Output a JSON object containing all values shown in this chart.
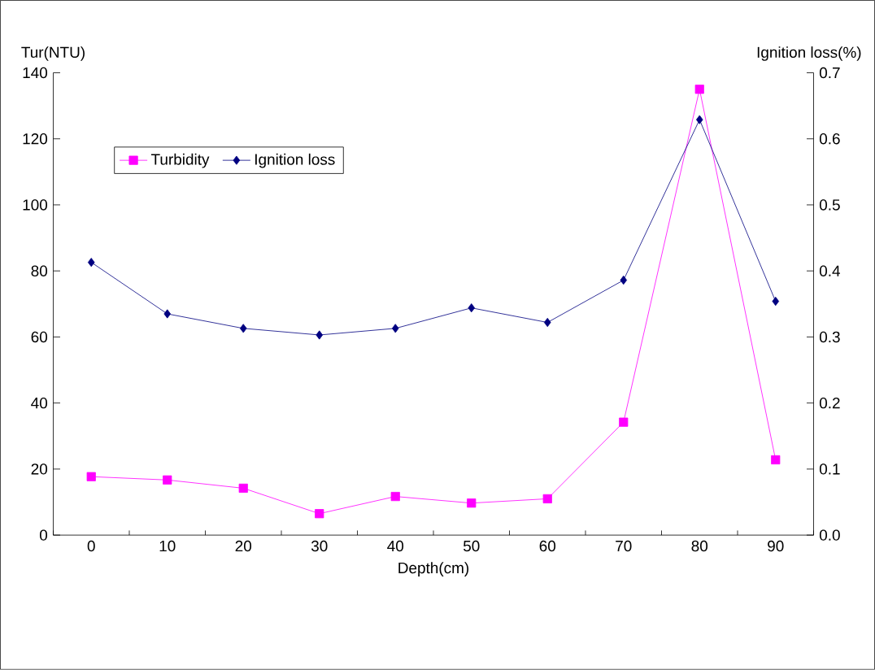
{
  "chart_data": {
    "type": "line",
    "xlabel": "Depth(cm)",
    "ylabel": "Tur(NTU)",
    "y2label": "Ignition loss(%)",
    "categories": [
      "0",
      "10",
      "20",
      "30",
      "40",
      "50",
      "60",
      "70",
      "80",
      "90"
    ],
    "series": [
      {
        "name": "Turbidity",
        "color": "#ff00ff",
        "marker": "square",
        "values": [
          17.7,
          16.7,
          14.2,
          6.5,
          11.7,
          9.7,
          11,
          34.2,
          135,
          22.8
        ]
      },
      {
        "name": "Ignition loss",
        "color": "#000080",
        "marker": "diamond",
        "axis": "y2",
        "values": [
          0.413,
          0.335,
          0.313,
          0.303,
          0.313,
          0.344,
          0.322,
          0.386,
          0.629,
          0.354
        ]
      }
    ],
    "ylim": [
      0,
      140
    ],
    "yticks": [
      0,
      20,
      40,
      60,
      80,
      100,
      120,
      140
    ],
    "y2lim": [
      0,
      0.7
    ],
    "y2ticks": [
      {
        "value": 0,
        "label": "0.0"
      },
      0.1,
      0.2,
      0.3,
      0.4,
      0.5,
      0.6,
      0.7
    ],
    "legend": "top left",
    "grid": false
  }
}
